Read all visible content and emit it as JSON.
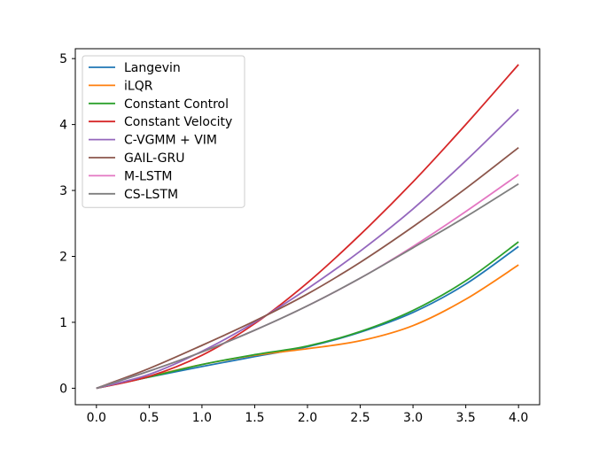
{
  "chart_data": {
    "type": "line",
    "title": "",
    "xlabel": "",
    "ylabel": "",
    "xlim": [
      -0.2,
      4.2
    ],
    "ylim": [
      -0.25,
      5.15
    ],
    "xticks": [
      0.0,
      0.5,
      1.0,
      1.5,
      2.0,
      2.5,
      3.0,
      3.5,
      4.0
    ],
    "xtick_labels": [
      "0.0",
      "0.5",
      "1.0",
      "1.5",
      "2.0",
      "2.5",
      "3.0",
      "3.5",
      "4.0"
    ],
    "yticks": [
      0,
      1,
      2,
      3,
      4,
      5
    ],
    "ytick_labels": [
      "0",
      "1",
      "2",
      "3",
      "4",
      "5"
    ],
    "grid": false,
    "legend_position": "top-left",
    "x": [
      0.0,
      0.5,
      1.0,
      1.5,
      2.0,
      2.5,
      3.0,
      3.5,
      4.0
    ],
    "series": [
      {
        "name": "Langevin",
        "color": "#1f77b4",
        "values": [
          0.0,
          0.17,
          0.33,
          0.48,
          0.63,
          0.85,
          1.15,
          1.58,
          2.15
        ]
      },
      {
        "name": "iLQR",
        "color": "#ff7f0e",
        "values": [
          0.0,
          0.18,
          0.36,
          0.5,
          0.6,
          0.72,
          0.95,
          1.35,
          1.87
        ]
      },
      {
        "name": "Constant Control",
        "color": "#2ca02c",
        "values": [
          0.0,
          0.17,
          0.36,
          0.51,
          0.64,
          0.86,
          1.18,
          1.63,
          2.22
        ]
      },
      {
        "name": "Constant Velocity",
        "color": "#d62728",
        "values": [
          0.0,
          0.18,
          0.5,
          0.98,
          1.6,
          2.33,
          3.13,
          4.0,
          4.91
        ]
      },
      {
        "name": "C-VGMM + VIM",
        "color": "#9467bd",
        "values": [
          0.0,
          0.21,
          0.56,
          1.0,
          1.51,
          2.08,
          2.72,
          3.45,
          4.23
        ]
      },
      {
        "name": "GAIL-GRU",
        "color": "#8c564b",
        "values": [
          0.0,
          0.3,
          0.65,
          1.02,
          1.43,
          1.91,
          2.45,
          3.03,
          3.65
        ]
      },
      {
        "name": "M-LSTM",
        "color": "#e377c2",
        "values": [
          0.0,
          0.26,
          0.55,
          0.88,
          1.25,
          1.67,
          2.15,
          2.68,
          3.24
        ]
      },
      {
        "name": "CS-LSTM",
        "color": "#7f7f7f",
        "values": [
          0.0,
          0.26,
          0.55,
          0.88,
          1.25,
          1.67,
          2.13,
          2.6,
          3.1
        ]
      }
    ]
  }
}
